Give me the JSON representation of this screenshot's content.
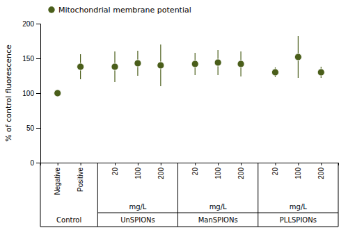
{
  "chart_data": {
    "type": "scatter",
    "y_label": "% of control fluorescence",
    "groups": [
      {
        "label": "Control",
        "categories": [
          "Negative",
          "Positive"
        ]
      },
      {
        "label": "UnSPIONs",
        "unit": "mg/L",
        "categories": [
          "20",
          "100",
          "200"
        ]
      },
      {
        "label": "ManSPIONs",
        "unit": "mg/L",
        "categories": [
          "20",
          "100",
          "200"
        ]
      },
      {
        "label": "PLLSPIONs",
        "unit": "mg/L",
        "categories": [
          "20",
          "100",
          "200"
        ]
      }
    ],
    "series": [
      {
        "name": "Mitochondrial membrane potential",
        "color": "#4a5e1a",
        "marker": "circle",
        "values": [
          100,
          138,
          138,
          143,
          140,
          142,
          144,
          142,
          130,
          152,
          130
        ],
        "errors": [
          0,
          18,
          22,
          18,
          30,
          16,
          18,
          18,
          7,
          30,
          8
        ]
      }
    ],
    "ylim": [
      0,
      200
    ],
    "yticks": [
      0,
      50,
      100,
      150,
      200
    ],
    "grid": false
  }
}
